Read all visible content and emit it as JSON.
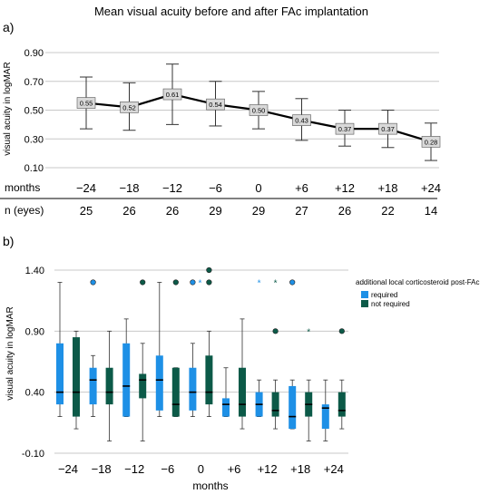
{
  "figure_title": "Mean visual acuity before and after FAc implantation",
  "colors": {
    "line": "#000000",
    "grid": "#c8c8c8",
    "label_box_fill": "#d9d9d9",
    "required": "#1e90e6",
    "not_required": "#0c5a48",
    "whisker": "#333333"
  },
  "chart_data": [
    {
      "panel_label": "a)",
      "type": "line",
      "title": "Mean visual acuity before and after FAc implantation",
      "xlabel": "months",
      "ylabel": "visual acuity in logMAR",
      "categories": [
        "−24",
        "−18",
        "−12",
        "−6",
        "0",
        "+6",
        "+12",
        "+18",
        "+24"
      ],
      "series": [
        {
          "values": [
            0.55,
            0.52,
            0.61,
            0.54,
            0.5,
            0.43,
            0.37,
            0.37,
            0.28
          ],
          "error_low": [
            0.37,
            0.36,
            0.4,
            0.39,
            0.37,
            0.29,
            0.25,
            0.24,
            0.15
          ],
          "error_high": [
            0.73,
            0.69,
            0.82,
            0.7,
            0.63,
            0.58,
            0.5,
            0.5,
            0.41
          ],
          "data_labels": [
            "0.55",
            "0.52",
            "0.61",
            "0.54",
            "0.50",
            "0.43",
            "0.37",
            "0.37",
            "0.28"
          ]
        }
      ],
      "yticks": [
        "0.10",
        "0.30",
        "0.50",
        "0.70",
        "0.90"
      ],
      "ylim": [
        0.1,
        0.9
      ],
      "grid": true,
      "table": {
        "header_months": "months",
        "header_n": "n (eyes)",
        "n": [
          "25",
          "26",
          "26",
          "29",
          "29",
          "27",
          "26",
          "22",
          "14"
        ]
      }
    },
    {
      "panel_label": "b)",
      "type": "box",
      "xlabel": "months",
      "ylabel": "visual acuity in logMAR",
      "categories": [
        "−24",
        "−18",
        "−12",
        "−6",
        "0",
        "+6",
        "+12",
        "+18",
        "+24"
      ],
      "yticks": [
        "-0.10",
        "0.40",
        "0.90",
        "1.40"
      ],
      "ylim": [
        -0.1,
        1.4
      ],
      "grid": true,
      "legend": {
        "title": "additional local corticosteroid post-FAc",
        "position": "right",
        "entries": [
          "required",
          "not required"
        ]
      },
      "series": [
        {
          "name": "required",
          "boxes": [
            {
              "min": 0.2,
              "q1": 0.3,
              "median": 0.4,
              "q3": 0.8,
              "max": 1.3
            },
            {
              "min": 0.2,
              "q1": 0.3,
              "median": 0.5,
              "q3": 0.6,
              "max": 0.7
            },
            {
              "min": 0.2,
              "q1": 0.2,
              "median": 0.45,
              "q3": 0.8,
              "max": 1.0
            },
            {
              "min": 0.2,
              "q1": 0.25,
              "median": 0.5,
              "q3": 0.7,
              "max": 1.3
            },
            {
              "min": 0.2,
              "q1": 0.25,
              "median": 0.4,
              "q3": 0.6,
              "max": 0.8
            },
            {
              "min": 0.2,
              "q1": 0.2,
              "median": 0.3,
              "q3": 0.35,
              "max": 0.6
            },
            {
              "min": 0.2,
              "q1": 0.2,
              "median": 0.3,
              "q3": 0.4,
              "max": 0.5
            },
            {
              "min": 0.1,
              "q1": 0.1,
              "median": 0.2,
              "q3": 0.45,
              "max": 0.5
            },
            {
              "min": 0.0,
              "q1": 0.1,
              "median": 0.27,
              "q3": 0.3,
              "max": 0.5
            }
          ],
          "outliers": [
            {
              "cat": 1,
              "value": 1.3,
              "symbol": "circle"
            },
            {
              "cat": 4,
              "value": 1.3,
              "symbol": "circle"
            },
            {
              "cat": 4,
              "value": 1.3,
              "symbol": "star"
            },
            {
              "cat": 6,
              "value": 1.3,
              "symbol": "star"
            },
            {
              "cat": 7,
              "value": 1.3,
              "symbol": "circle"
            }
          ]
        },
        {
          "name": "not required",
          "boxes": [
            {
              "min": 0.1,
              "q1": 0.2,
              "median": 0.4,
              "q3": 0.85,
              "max": 0.9
            },
            {
              "min": 0.0,
              "q1": 0.3,
              "median": 0.4,
              "q3": 0.6,
              "max": 0.9
            },
            {
              "min": 0.0,
              "q1": 0.35,
              "median": 0.5,
              "q3": 0.55,
              "max": 0.8
            },
            {
              "min": 0.2,
              "q1": 0.2,
              "median": 0.3,
              "q3": 0.6,
              "max": 0.6
            },
            {
              "min": 0.2,
              "q1": 0.3,
              "median": 0.4,
              "q3": 0.7,
              "max": 0.9
            },
            {
              "min": 0.1,
              "q1": 0.2,
              "median": 0.3,
              "q3": 0.6,
              "max": 1.0
            },
            {
              "min": 0.1,
              "q1": 0.2,
              "median": 0.25,
              "q3": 0.4,
              "max": 0.5
            },
            {
              "min": 0.0,
              "q1": 0.2,
              "median": 0.3,
              "q3": 0.4,
              "max": 0.5
            },
            {
              "min": 0.1,
              "q1": 0.2,
              "median": 0.25,
              "q3": 0.4,
              "max": 0.5
            }
          ],
          "outliers": [
            {
              "cat": 2,
              "value": 1.3,
              "symbol": "circle"
            },
            {
              "cat": 3,
              "value": 1.3,
              "symbol": "circle"
            },
            {
              "cat": 4,
              "value": 1.3,
              "symbol": "circle"
            },
            {
              "cat": 4,
              "value": 1.4,
              "symbol": "circle"
            },
            {
              "cat": 6,
              "value": 1.3,
              "symbol": "star"
            },
            {
              "cat": 6,
              "value": 0.9,
              "symbol": "circle"
            },
            {
              "cat": 7,
              "value": 0.9,
              "symbol": "star"
            },
            {
              "cat": 8,
              "value": 0.9,
              "symbol": "circle"
            }
          ]
        }
      ]
    }
  ]
}
